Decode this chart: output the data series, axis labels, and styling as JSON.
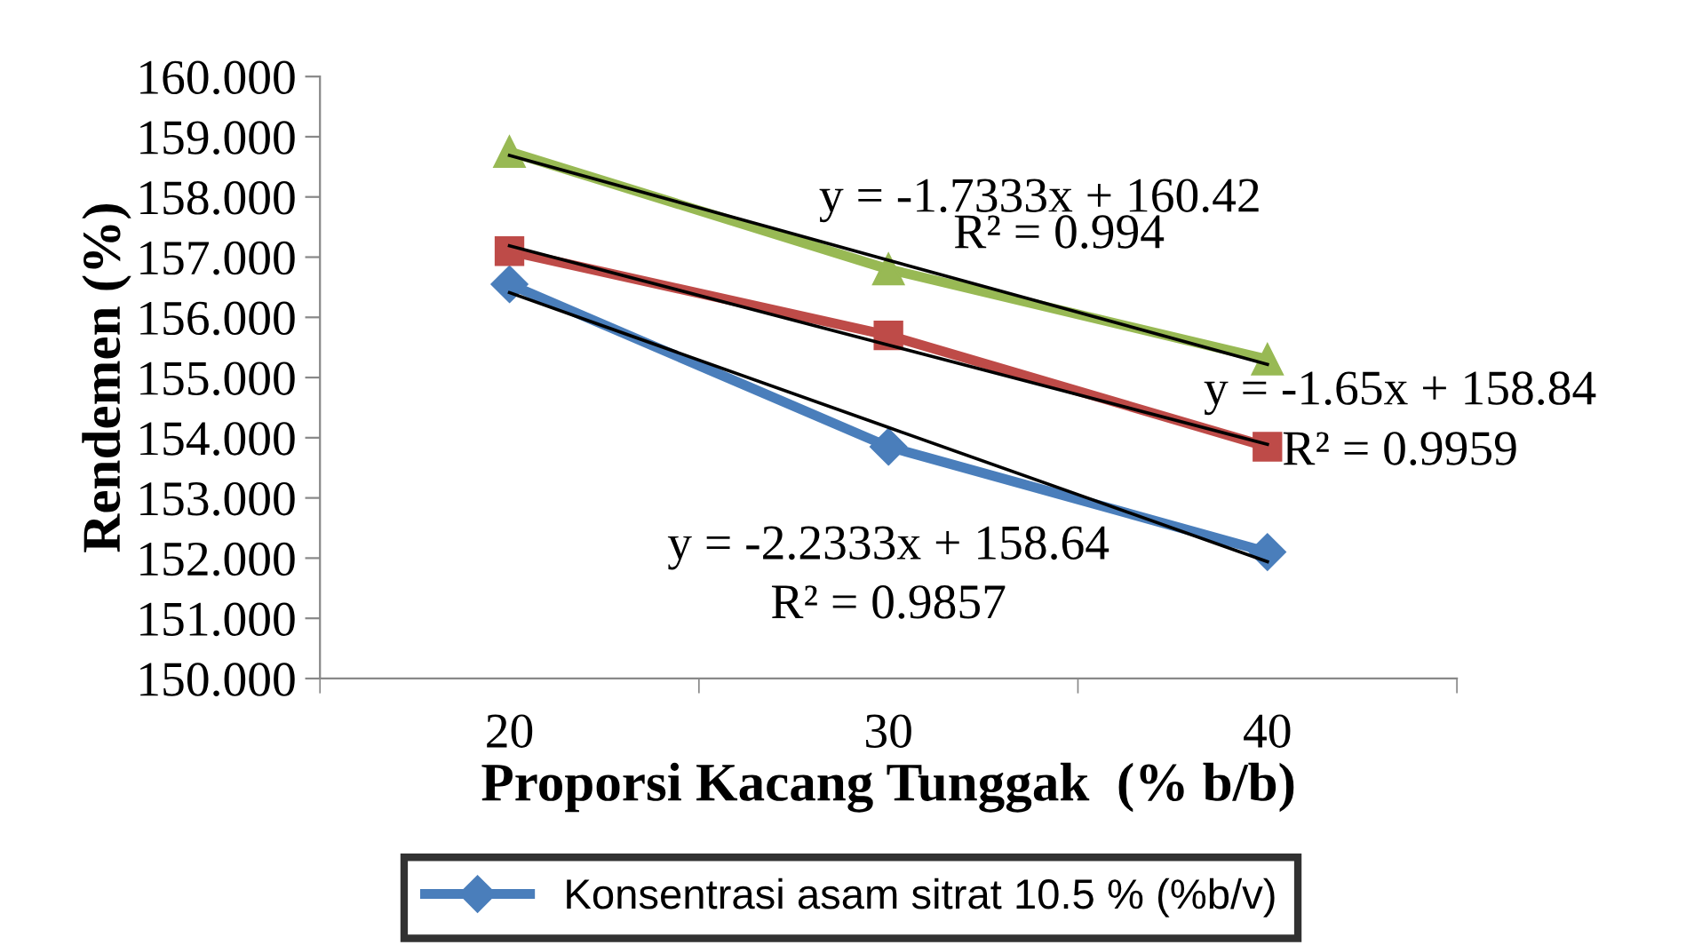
{
  "chart_data": {
    "type": "line",
    "xlabel": "Proporsi Kacang Tunggak  (% b/b)",
    "ylabel": "Rendemen (%)",
    "categories": [
      "20",
      "30",
      "40"
    ],
    "series": [
      {
        "name": "Konsentrasi asam sitrat 10.5 % (%b/v)",
        "color": "#4a7ebb",
        "marker": "diamond",
        "values": [
          156.55,
          153.85,
          152.1
        ]
      },
      {
        "color": "#be4b48",
        "marker": "square",
        "values": [
          157.1,
          155.7,
          153.85
        ]
      },
      {
        "color": "#98b954",
        "marker": "triangle",
        "values": [
          158.75,
          156.8,
          155.3
        ]
      },
      {
        "color": "#000000",
        "marker": "none",
        "values": [
          156.41,
          154.17,
          151.94
        ]
      },
      {
        "color": "#000000",
        "marker": "none",
        "values": [
          157.19,
          155.54,
          153.89
        ]
      },
      {
        "color": "#000000",
        "marker": "none",
        "values": [
          158.69,
          156.95,
          155.22
        ]
      }
    ],
    "ylim": [
      150,
      160
    ],
    "yticks": [
      {
        "value": 150,
        "label": "150.000"
      },
      {
        "value": 151,
        "label": "151.000"
      },
      {
        "value": 152,
        "label": "152.000"
      },
      {
        "value": 153,
        "label": "153.000"
      },
      {
        "value": 154,
        "label": "154.000"
      },
      {
        "value": 155,
        "label": "155.000"
      },
      {
        "value": 156,
        "label": "156.000"
      },
      {
        "value": 157,
        "label": "157.000"
      },
      {
        "value": 158,
        "label": "158.000"
      },
      {
        "value": 159,
        "label": "159.000"
      },
      {
        "value": 160,
        "label": "160.000"
      }
    ],
    "annotations": [
      "y = -1.7333x + 160.42",
      "R² = 0.994",
      "y = -1.65x + 158.84",
      "R² = 0.9959",
      "y = -2.2333x + 158.64",
      "R² = 0.9857"
    ],
    "legend": "bottom",
    "grid": false
  }
}
